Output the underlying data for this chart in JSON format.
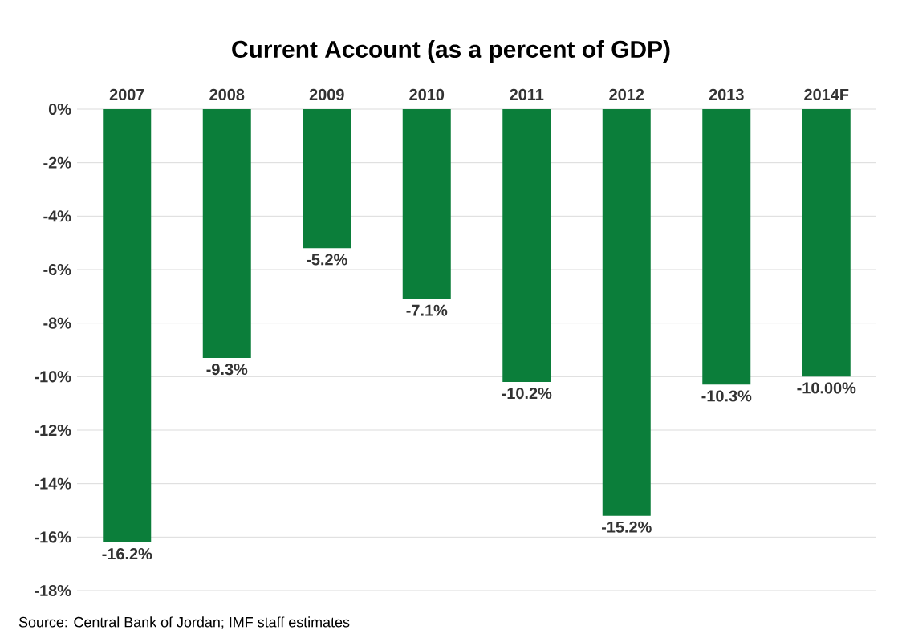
{
  "chart_data": {
    "type": "bar",
    "title": "Current Account (as a percent of GDP)",
    "categories": [
      "2007",
      "2008",
      "2009",
      "2010",
      "2011",
      "2012",
      "2013",
      "2014F"
    ],
    "values": [
      -16.2,
      -9.3,
      -5.2,
      -7.1,
      -10.2,
      -15.2,
      -10.3,
      -10.0
    ],
    "value_labels": [
      "-16.2%",
      "-9.3%",
      "-5.2%",
      "-7.1%",
      "-10.2%",
      "-15.2%",
      "-10.3%",
      "-10.00%"
    ],
    "color": "#0b7e3a",
    "ylim": [
      -18,
      0
    ],
    "yticks": [
      {
        "value": 0,
        "label": "0%"
      },
      {
        "value": -2,
        "label": "-2%"
      },
      {
        "value": -4,
        "label": "-4%"
      },
      {
        "value": -6,
        "label": "-6%"
      },
      {
        "value": -8,
        "label": "-8%"
      },
      {
        "value": -10,
        "label": "-10%"
      },
      {
        "value": -12,
        "label": "-12%"
      },
      {
        "value": -14,
        "label": "-14%"
      },
      {
        "value": -16,
        "label": "-16%"
      },
      {
        "value": -18,
        "label": "-18%"
      }
    ],
    "grid": "y",
    "annotations": [
      "Source: Central Bank of Jordan; IMF staff estimates"
    ]
  }
}
